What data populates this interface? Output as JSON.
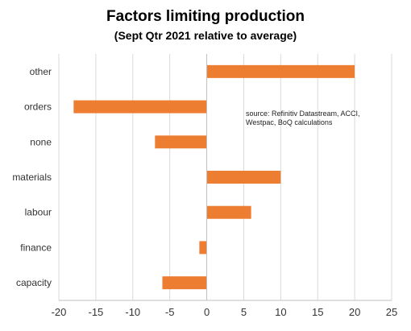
{
  "chart_data": {
    "type": "bar",
    "orientation": "horizontal",
    "title": "Factors limiting  production",
    "subtitle": "(Sept Qtr 2021 relative to average)",
    "categories": [
      "other",
      "orders",
      "none",
      "materials",
      "labour",
      "finance",
      "capacity"
    ],
    "values": [
      20,
      -18,
      -7,
      10,
      6,
      -1,
      -6
    ],
    "xlim": [
      -20,
      25
    ],
    "xticks": [
      "-20",
      "-15",
      "-10",
      "-5",
      "0",
      "5",
      "10",
      "15",
      "20",
      "25"
    ],
    "grid": "vertical",
    "bar_color": "#ED7D31",
    "annotation": [
      "source:  Refinitiv Datastream, ACCI,",
      "Westpac, BoQ calculations"
    ]
  }
}
